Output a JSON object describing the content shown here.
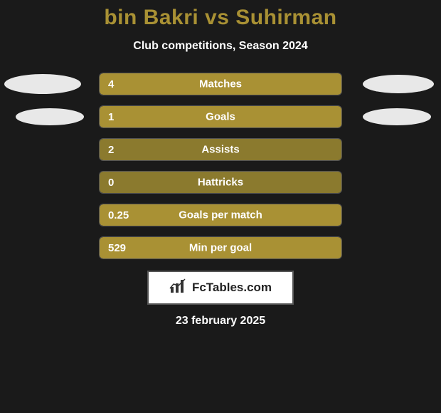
{
  "title": "bin Bakri vs Suhirman",
  "title_color": "#a99134",
  "subtitle": "Club competitions, Season 2024",
  "background_color": "#1a1a1a",
  "text_color": "#ffffff",
  "bar_border_color": "rgba(255,255,255,0.25)",
  "ellipse_color": "#e8e8e8",
  "logo_text": "FcTables.com",
  "date": "23 february 2025",
  "stats": [
    {
      "value": "4",
      "label": "Matches",
      "fill_color": "#a99134",
      "fill_pct": 100,
      "show_ellipses": true
    },
    {
      "value": "1",
      "label": "Goals",
      "fill_color": "#a99134",
      "fill_pct": 100,
      "show_ellipses": true
    },
    {
      "value": "2",
      "label": "Assists",
      "fill_color": "#8b7a2e",
      "fill_pct": 100,
      "show_ellipses": false
    },
    {
      "value": "0",
      "label": "Hattricks",
      "fill_color": "#8b7a2e",
      "fill_pct": 100,
      "show_ellipses": false
    },
    {
      "value": "0.25",
      "label": "Goals per match",
      "fill_color": "#a99134",
      "fill_pct": 100,
      "show_ellipses": false
    },
    {
      "value": "529",
      "label": "Min per goal",
      "fill_color": "#a99134",
      "fill_pct": 100,
      "show_ellipses": false
    }
  ]
}
